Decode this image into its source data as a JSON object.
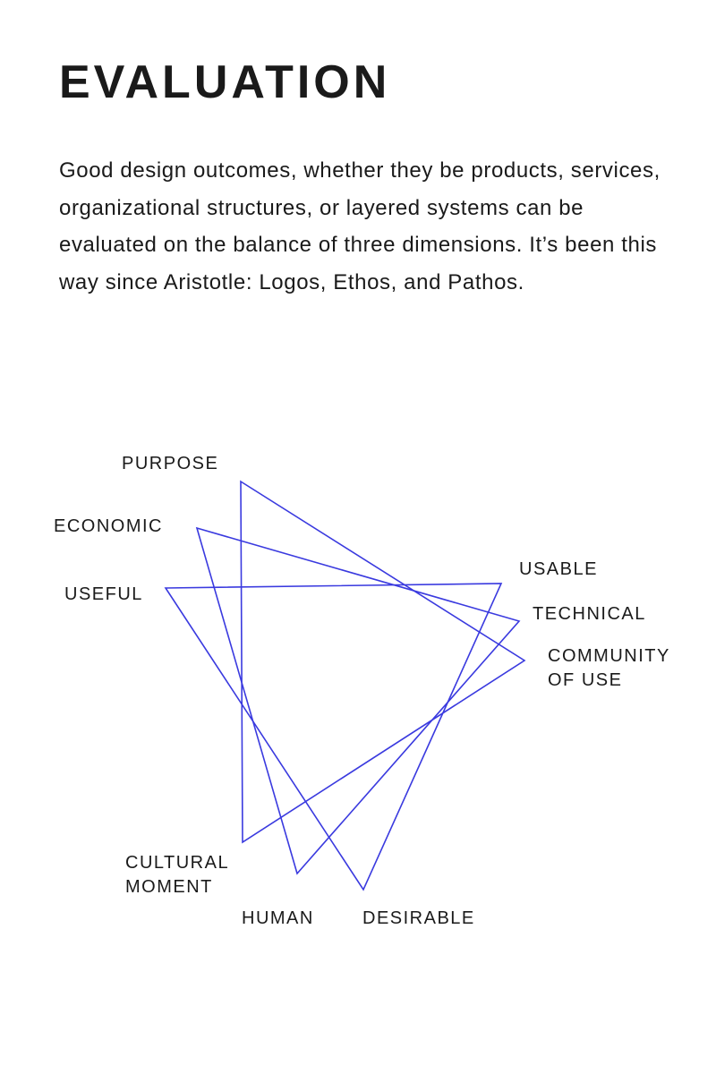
{
  "title": "EVALUATION",
  "intro": "Good design outcomes, whether they be products, services, organizational structures, or layered systems can be evaluated on the balance of three dimensions. It’s been this way since Aristotle: Logos, Ethos, and Pathos.",
  "diagram": {
    "line_color": "#3a3adf",
    "labels": {
      "purpose": "PURPOSE",
      "economic": "ECONOMIC",
      "useful": "USEFUL",
      "usable": "USABLE",
      "technical": "TECHNICAL",
      "community": "COMMUNITY\nOF USE",
      "cultural": "CULTURAL\nMOMENT",
      "human": "HUMAN",
      "desirable": "DESIRABLE"
    },
    "triangles": [
      [
        "purpose",
        "community",
        "cultural"
      ],
      [
        "economic",
        "technical",
        "human"
      ],
      [
        "useful",
        "usable",
        "desirable"
      ]
    ]
  }
}
